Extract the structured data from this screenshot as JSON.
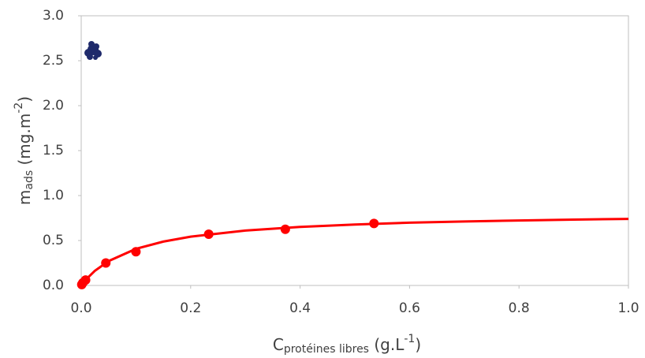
{
  "chart_data": {
    "type": "scatter",
    "xlabel": {
      "main": "C",
      "sub": "protéines libres",
      "unit": " (g.L",
      "sup": "-1",
      "end": ")"
    },
    "ylabel": {
      "main": "m",
      "sub": "ads",
      "unit": " (mg.m",
      "sup": "-2",
      "end": ")"
    },
    "xlim": [
      0,
      1
    ],
    "ylim": [
      0,
      3
    ],
    "xticks": [
      {
        "value": 0,
        "label": "0.0"
      },
      {
        "value": 0.2,
        "label": "0.2"
      },
      {
        "value": 0.4,
        "label": "0.4"
      },
      {
        "value": 0.6,
        "label": "0.6"
      },
      {
        "value": 0.8,
        "label": "0.8"
      },
      {
        "value": 1,
        "label": "1.0"
      }
    ],
    "yticks": [
      {
        "value": 0,
        "label": "0.0"
      },
      {
        "value": 0.5,
        "label": "0.5"
      },
      {
        "value": 1,
        "label": "1.0"
      },
      {
        "value": 1.5,
        "label": "1.5"
      },
      {
        "value": 2,
        "label": "2.0"
      },
      {
        "value": 2.5,
        "label": "2.5"
      },
      {
        "value": 3,
        "label": "3.0"
      }
    ],
    "grid": false,
    "series": [
      {
        "color": "#ff0000",
        "style": "points",
        "x": [
          0.001,
          0.003,
          0.008,
          0.045,
          0.1,
          0.233,
          0.373,
          0.535
        ],
        "values": [
          0.01,
          0.03,
          0.06,
          0.25,
          0.375,
          0.57,
          0.625,
          0.69
        ],
        "errors": [
          0.01,
          0.01,
          0.02,
          0.02,
          0.03,
          0.04,
          0.04,
          0.05
        ]
      },
      {
        "color": "#ff0000",
        "style": "line",
        "x": [
          0,
          0.01,
          0.025,
          0.05,
          0.1,
          0.15,
          0.2,
          0.3,
          0.4,
          0.5,
          0.6,
          0.7,
          0.8,
          0.9,
          1.0
        ],
        "values": [
          0,
          0.074,
          0.163,
          0.271,
          0.407,
          0.488,
          0.543,
          0.611,
          0.651,
          0.678,
          0.698,
          0.712,
          0.723,
          0.733,
          0.74
        ]
      }
    ]
  }
}
